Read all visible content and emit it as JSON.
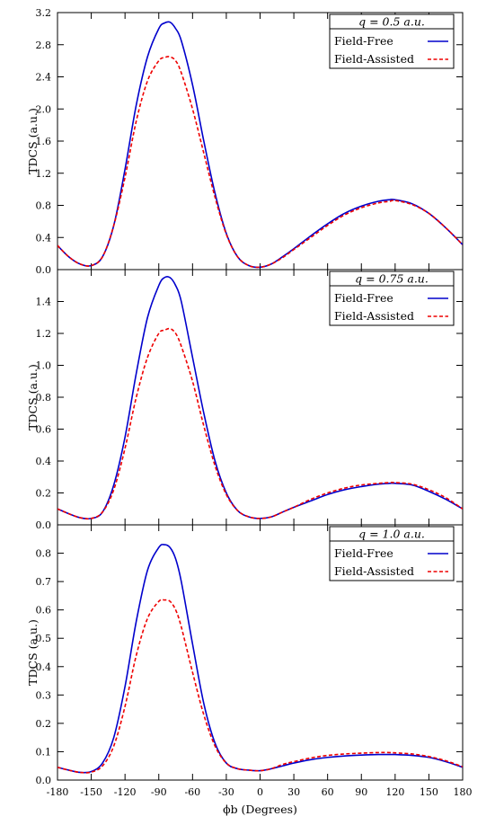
{
  "chart_data": [
    {
      "type": "line",
      "legend_title": "q = 0.5 a.u.",
      "ylabel": "TDCS (a.u.)",
      "xlabel": "",
      "xlim": [
        -180,
        180
      ],
      "ylim": [
        0,
        3.2
      ],
      "yticks": [
        0,
        0.4,
        0.8,
        1.2,
        1.6,
        2.0,
        2.4,
        2.8,
        3.2
      ],
      "ytick_labels": [
        "0.0",
        "0.4",
        "0.8",
        "1.2",
        "1.6",
        "2.0",
        "2.4",
        "2.8",
        "3.2"
      ],
      "legend_position": "top-right",
      "x": [
        -180,
        -170,
        -160,
        -150,
        -140,
        -130,
        -120,
        -110,
        -100,
        -90,
        -85,
        -80,
        -75,
        -70,
        -60,
        -50,
        -40,
        -30,
        -20,
        -10,
        0,
        10,
        20,
        30,
        45,
        60,
        75,
        90,
        105,
        115,
        120,
        135,
        150,
        165,
        180
      ],
      "series": [
        {
          "name": "Field-Free",
          "color": "#0000cc",
          "style": "solid",
          "values": [
            0.3,
            0.16,
            0.07,
            0.05,
            0.16,
            0.55,
            1.25,
            2.05,
            2.65,
            3.0,
            3.07,
            3.08,
            3.0,
            2.85,
            2.3,
            1.6,
            0.95,
            0.45,
            0.16,
            0.05,
            0.03,
            0.07,
            0.16,
            0.26,
            0.42,
            0.57,
            0.7,
            0.79,
            0.85,
            0.87,
            0.87,
            0.82,
            0.7,
            0.52,
            0.31
          ]
        },
        {
          "name": "Field-Assisted",
          "color": "#ee0000",
          "style": "dashed",
          "values": [
            0.3,
            0.16,
            0.07,
            0.05,
            0.16,
            0.55,
            1.15,
            1.85,
            2.35,
            2.6,
            2.64,
            2.65,
            2.6,
            2.45,
            2.0,
            1.45,
            0.9,
            0.44,
            0.16,
            0.05,
            0.03,
            0.07,
            0.15,
            0.25,
            0.4,
            0.55,
            0.68,
            0.77,
            0.83,
            0.85,
            0.86,
            0.81,
            0.7,
            0.52,
            0.31
          ]
        }
      ]
    },
    {
      "type": "line",
      "legend_title": "q = 0.75 a.u.",
      "ylabel": "TDCS (a.u.)",
      "xlabel": "",
      "xlim": [
        -180,
        180
      ],
      "ylim": [
        0,
        1.6
      ],
      "yticks": [
        0,
        0.2,
        0.4,
        0.6,
        0.8,
        1.0,
        1.2,
        1.4
      ],
      "ytick_labels": [
        "0.0",
        "0.2",
        "0.4",
        "0.6",
        "0.8",
        "1.0",
        "1.2",
        "1.4"
      ],
      "legend_position": "top-right",
      "x": [
        -180,
        -170,
        -160,
        -150,
        -140,
        -130,
        -120,
        -110,
        -100,
        -90,
        -85,
        -80,
        -75,
        -70,
        -60,
        -50,
        -40,
        -30,
        -20,
        -10,
        0,
        10,
        20,
        30,
        45,
        60,
        75,
        90,
        105,
        115,
        120,
        135,
        150,
        165,
        180
      ],
      "series": [
        {
          "name": "Field-Free",
          "color": "#0000cc",
          "style": "solid",
          "values": [
            0.1,
            0.07,
            0.045,
            0.04,
            0.08,
            0.25,
            0.55,
            0.95,
            1.3,
            1.5,
            1.55,
            1.55,
            1.5,
            1.4,
            1.05,
            0.7,
            0.4,
            0.2,
            0.09,
            0.05,
            0.04,
            0.05,
            0.08,
            0.11,
            0.15,
            0.19,
            0.22,
            0.24,
            0.255,
            0.26,
            0.26,
            0.25,
            0.21,
            0.16,
            0.1
          ]
        },
        {
          "name": "Field-Assisted",
          "color": "#ee0000",
          "style": "dashed",
          "values": [
            0.1,
            0.07,
            0.045,
            0.04,
            0.08,
            0.22,
            0.48,
            0.8,
            1.05,
            1.2,
            1.22,
            1.23,
            1.2,
            1.12,
            0.9,
            0.62,
            0.37,
            0.19,
            0.09,
            0.05,
            0.04,
            0.05,
            0.08,
            0.11,
            0.16,
            0.2,
            0.23,
            0.25,
            0.26,
            0.265,
            0.265,
            0.255,
            0.22,
            0.17,
            0.1
          ]
        }
      ]
    },
    {
      "type": "line",
      "legend_title": "q = 1.0 a.u.",
      "ylabel": "TDCS (a.u.)",
      "xlabel": "ϕb (Degrees)",
      "xlim": [
        -180,
        180
      ],
      "ylim": [
        0,
        0.9
      ],
      "yticks": [
        0,
        0.1,
        0.2,
        0.3,
        0.4,
        0.5,
        0.6,
        0.7,
        0.8
      ],
      "ytick_labels": [
        "0.0",
        "0.1",
        "0.2",
        "0.3",
        "0.4",
        "0.5",
        "0.6",
        "0.7",
        "0.8"
      ],
      "xticks": [
        -180,
        -150,
        -120,
        -90,
        -60,
        -30,
        0,
        30,
        60,
        90,
        120,
        150,
        180
      ],
      "xtick_labels": [
        "-180",
        "-150",
        "-120",
        "-90",
        "-60",
        "-30",
        "0",
        "30",
        "60",
        "90",
        "120",
        "150",
        "180"
      ],
      "legend_position": "top-right",
      "x": [
        -180,
        -170,
        -160,
        -150,
        -140,
        -130,
        -120,
        -110,
        -100,
        -90,
        -85,
        -80,
        -75,
        -70,
        -60,
        -50,
        -40,
        -30,
        -20,
        -10,
        0,
        10,
        20,
        30,
        45,
        60,
        75,
        90,
        105,
        115,
        120,
        135,
        150,
        165,
        180
      ],
      "series": [
        {
          "name": "Field-Free",
          "color": "#0000cc",
          "style": "solid",
          "values": [
            0.045,
            0.035,
            0.027,
            0.03,
            0.06,
            0.15,
            0.33,
            0.56,
            0.74,
            0.82,
            0.83,
            0.82,
            0.78,
            0.7,
            0.48,
            0.27,
            0.13,
            0.06,
            0.04,
            0.035,
            0.033,
            0.04,
            0.05,
            0.06,
            0.072,
            0.08,
            0.085,
            0.088,
            0.09,
            0.09,
            0.09,
            0.087,
            0.08,
            0.065,
            0.045
          ]
        },
        {
          "name": "Field-Assisted",
          "color": "#ee0000",
          "style": "dashed",
          "values": [
            0.045,
            0.035,
            0.027,
            0.028,
            0.05,
            0.12,
            0.26,
            0.44,
            0.57,
            0.63,
            0.635,
            0.63,
            0.6,
            0.54,
            0.38,
            0.23,
            0.12,
            0.06,
            0.04,
            0.035,
            0.033,
            0.04,
            0.055,
            0.065,
            0.078,
            0.087,
            0.092,
            0.095,
            0.097,
            0.097,
            0.096,
            0.092,
            0.083,
            0.068,
            0.047
          ]
        }
      ]
    }
  ]
}
